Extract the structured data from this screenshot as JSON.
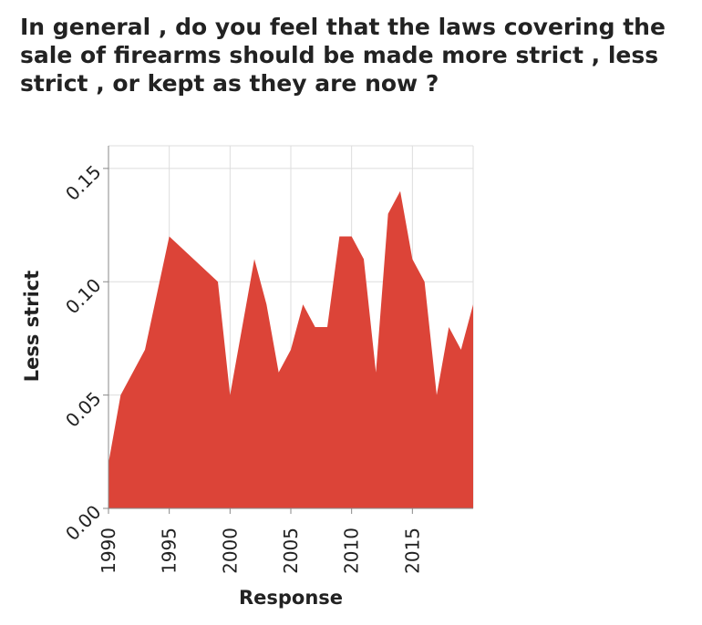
{
  "chart_data": {
    "type": "area",
    "title": "In general , do you feel that the laws covering the sale of firearms should be made more strict , less strict , or kept as they are now ?",
    "xlabel": "Response",
    "ylabel": "Less strict",
    "xlim": [
      1990,
      2020
    ],
    "ylim": [
      0,
      0.16
    ],
    "x_ticks": [
      "1990",
      "1995",
      "2000",
      "2005",
      "2010",
      "2015"
    ],
    "y_ticks": [
      "0.00",
      "0.05",
      "0.10",
      "0.15"
    ],
    "grid": true,
    "color": "#dc4438",
    "series": [
      {
        "x": [
          1990,
          1991,
          1993,
          1995,
          1999,
          2000,
          2002,
          2003,
          2004,
          2005,
          2006,
          2007,
          2008,
          2009,
          2010,
          2011,
          2012,
          2013,
          2014,
          2015,
          2016,
          2017,
          2018,
          2019,
          2020
        ],
        "values": [
          0.02,
          0.05,
          0.07,
          0.12,
          0.1,
          0.05,
          0.11,
          0.09,
          0.06,
          0.07,
          0.09,
          0.08,
          0.08,
          0.12,
          0.12,
          0.11,
          0.06,
          0.13,
          0.14,
          0.11,
          0.1,
          0.05,
          0.08,
          0.07,
          0.09
        ]
      }
    ]
  }
}
